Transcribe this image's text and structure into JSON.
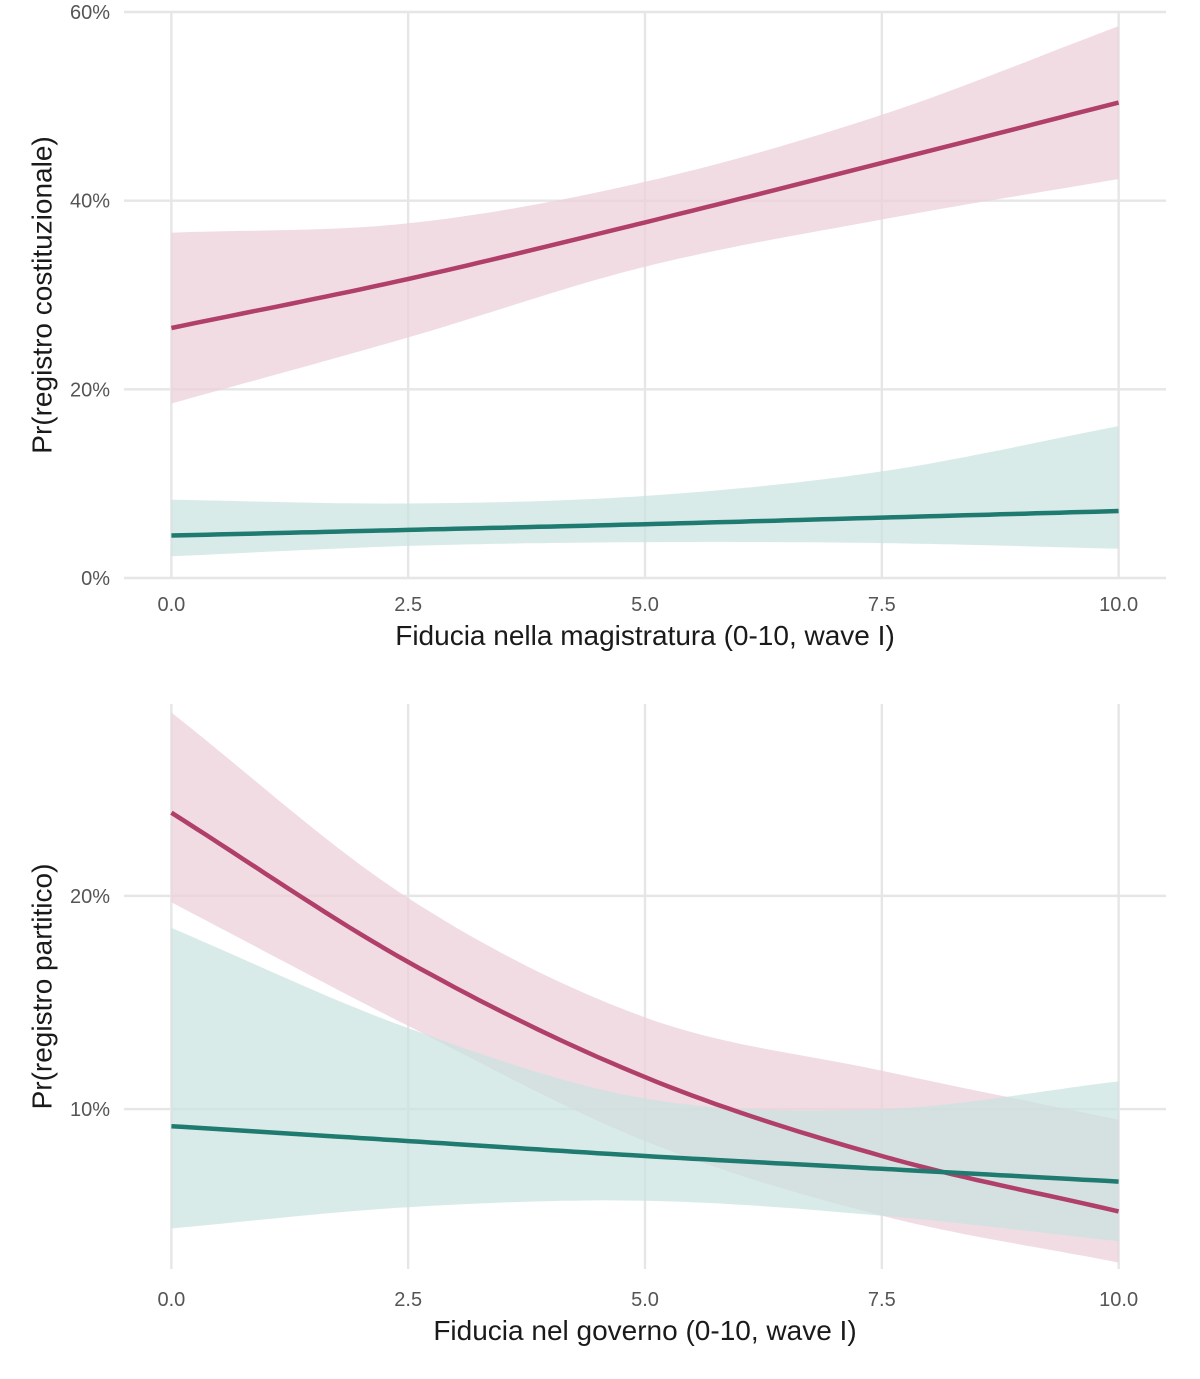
{
  "colors": {
    "red_line": "#b04069",
    "red_band": "#edd0da",
    "teal_line": "#1f7a70",
    "teal_band": "#c9e2e0"
  },
  "chart_data": [
    {
      "type": "line",
      "xlabel": "Fiducia nella magistratura (0-10, wave I)",
      "ylabel": "Pr(registro costituzionale)",
      "xlim": [
        -0.5,
        10.5
      ],
      "ylim": [
        0,
        0.6
      ],
      "xticks": [
        0,
        2.5,
        5,
        7.5,
        10
      ],
      "xtick_labels": [
        "0.0",
        "2.5",
        "5.0",
        "7.5",
        "10.0"
      ],
      "yticks": [
        0,
        0.2,
        0.4,
        0.6
      ],
      "ytick_labels": [
        "0%",
        "20%",
        "40%",
        "60%"
      ],
      "grid": true,
      "series": [
        {
          "color_key": "red",
          "x": [
            0,
            2.5,
            5,
            7.5,
            10
          ],
          "y": [
            0.265,
            0.317,
            0.377,
            0.44,
            0.504
          ],
          "lower": [
            0.185,
            0.255,
            0.33,
            0.38,
            0.423
          ],
          "upper": [
            0.366,
            0.376,
            0.42,
            0.491,
            0.585
          ]
        },
        {
          "color_key": "teal",
          "x": [
            0,
            2.5,
            5,
            7.5,
            10
          ],
          "y": [
            0.045,
            0.051,
            0.057,
            0.064,
            0.071
          ],
          "lower": [
            0.023,
            0.034,
            0.038,
            0.037,
            0.031
          ],
          "upper": [
            0.083,
            0.079,
            0.087,
            0.113,
            0.161
          ]
        }
      ]
    },
    {
      "type": "line",
      "xlabel": "Fiducia nel governo (0-10, wave I)",
      "ylabel": "Pr(registro partitico)",
      "xlim": [
        -0.5,
        10.5
      ],
      "ylim": [
        0.025,
        0.29
      ],
      "xticks": [
        0,
        2.5,
        5,
        7.5,
        10
      ],
      "xtick_labels": [
        "0.0",
        "2.5",
        "5.0",
        "7.5",
        "10.0"
      ],
      "yticks": [
        0.1,
        0.2
      ],
      "ytick_labels": [
        "10%",
        "20%"
      ],
      "grid": true,
      "series": [
        {
          "color_key": "red",
          "x": [
            0,
            2.5,
            5,
            7.5,
            10
          ],
          "y": [
            0.239,
            0.169,
            0.115,
            0.078,
            0.052
          ],
          "lower": [
            0.197,
            0.139,
            0.085,
            0.05,
            0.028
          ],
          "upper": [
            0.286,
            0.199,
            0.143,
            0.118,
            0.095
          ]
        },
        {
          "color_key": "teal",
          "x": [
            0,
            2.5,
            5,
            7.5,
            10
          ],
          "y": [
            0.092,
            0.085,
            0.078,
            0.072,
            0.066
          ],
          "lower": [
            0.044,
            0.054,
            0.057,
            0.05,
            0.038
          ],
          "upper": [
            0.185,
            0.138,
            0.105,
            0.1,
            0.113
          ]
        }
      ]
    }
  ]
}
